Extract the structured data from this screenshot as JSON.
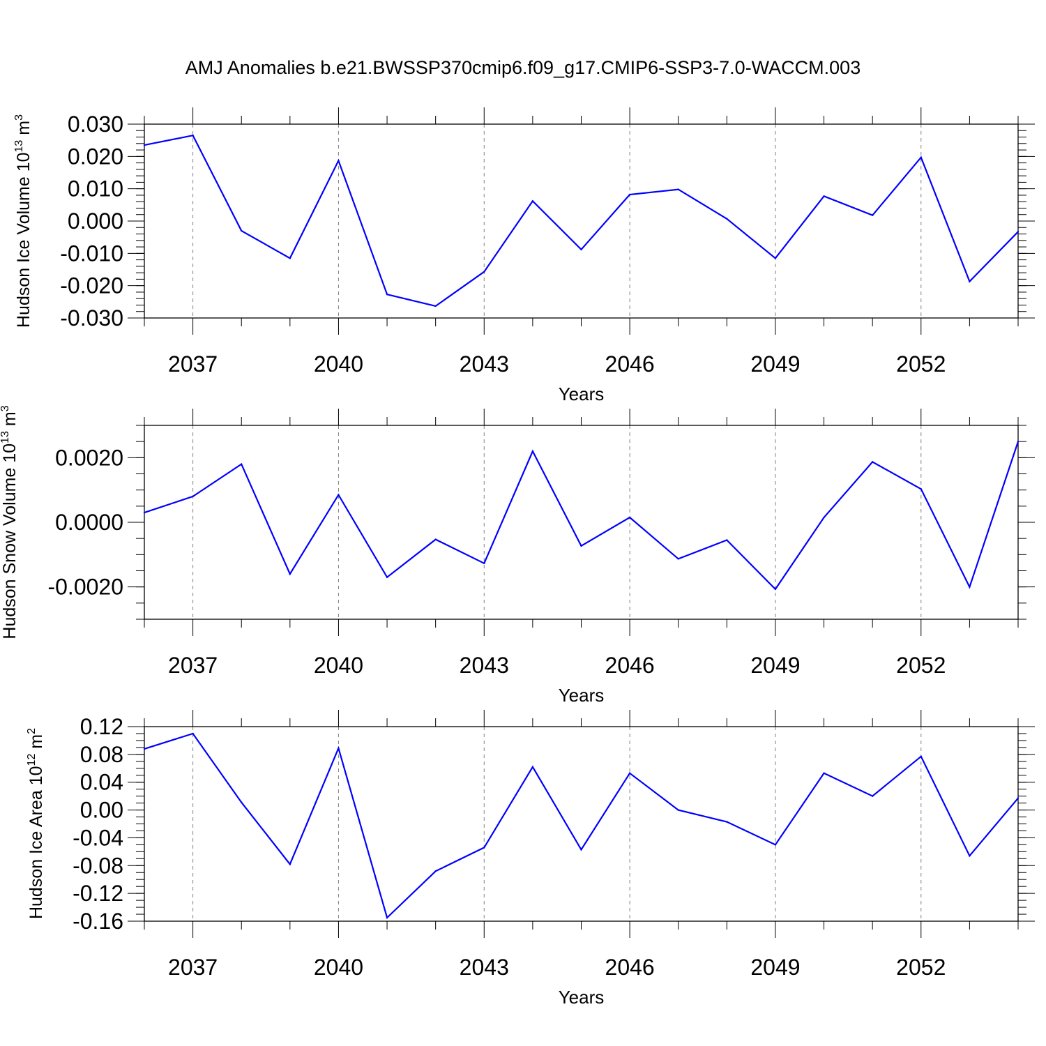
{
  "figure": {
    "title": "AMJ Anomalies b.e21.BWSSP370cmip6.f09_g17.CMIP6-SSP3-7.0-WACCM.003"
  },
  "colors": {
    "series": "#0000ff",
    "axes": "#000000",
    "grid": "#808080"
  },
  "chart_data": [
    {
      "type": "line",
      "xlabel": "Years",
      "ylabel_text": "Hudson Ice Volume 10",
      "ylabel_exp": "13",
      "ylabel_unit": " m",
      "ylabel_unit_exp": "3",
      "xlim": [
        2036,
        2054
      ],
      "ylim": [
        -0.03,
        0.03
      ],
      "x_ticks": [
        2037,
        2040,
        2043,
        2046,
        2049,
        2052
      ],
      "x_tick_labels": [
        "2037",
        "2040",
        "2043",
        "2046",
        "2049",
        "2052"
      ],
      "y_ticks": [
        -0.03,
        -0.02,
        -0.01,
        0.0,
        0.01,
        0.02,
        0.03
      ],
      "y_tick_labels": [
        "-0.030",
        "-0.020",
        "-0.010",
        "0.000",
        "0.010",
        "0.020",
        "0.030"
      ],
      "y_minor_step": 0.002,
      "grid": "x-major dashed",
      "x": [
        2036,
        2037,
        2038,
        2039,
        2040,
        2041,
        2042,
        2043,
        2044,
        2045,
        2046,
        2047,
        2048,
        2049,
        2050,
        2051,
        2052,
        2053,
        2054
      ],
      "series": [
        {
          "values": [
            0.0235,
            0.0265,
            -0.003,
            -0.0115,
            0.0187,
            -0.0227,
            -0.0263,
            -0.0157,
            0.0062,
            -0.0088,
            0.0082,
            0.0098,
            0.0007,
            -0.0115,
            0.0077,
            0.0018,
            0.0197,
            -0.0187,
            -0.0033
          ]
        }
      ]
    },
    {
      "type": "line",
      "xlabel": "Years",
      "ylabel_text": "Hudson Snow Volume 10",
      "ylabel_exp": "13",
      "ylabel_unit": " m",
      "ylabel_unit_exp": "3",
      "xlim": [
        2036,
        2054
      ],
      "ylim": [
        -0.003,
        0.003
      ],
      "x_ticks": [
        2037,
        2040,
        2043,
        2046,
        2049,
        2052
      ],
      "x_tick_labels": [
        "2037",
        "2040",
        "2043",
        "2046",
        "2049",
        "2052"
      ],
      "y_ticks": [
        -0.002,
        0.0,
        0.002
      ],
      "y_tick_labels": [
        "-0.0020",
        "0.0000",
        "0.0020"
      ],
      "y_minor_step": 0.0005,
      "grid": "x-major dashed",
      "x": [
        2036,
        2037,
        2038,
        2039,
        2040,
        2041,
        2042,
        2043,
        2044,
        2045,
        2046,
        2047,
        2048,
        2049,
        2050,
        2051,
        2052,
        2053,
        2054
      ],
      "series": [
        {
          "values": [
            0.0003,
            0.0008,
            0.0018,
            -0.0016,
            0.00085,
            -0.0017,
            -0.00053,
            -0.00127,
            0.0022,
            -0.00073,
            0.00015,
            -0.00113,
            -0.00055,
            -0.00207,
            0.00015,
            0.00187,
            0.00103,
            -0.002,
            0.0025
          ]
        }
      ]
    },
    {
      "type": "line",
      "xlabel": "Years",
      "ylabel_text": "Hudson Ice Area 10",
      "ylabel_exp": "12",
      "ylabel_unit": " m",
      "ylabel_unit_exp": "2",
      "xlim": [
        2036,
        2054
      ],
      "ylim": [
        -0.16,
        0.12
      ],
      "x_ticks": [
        2037,
        2040,
        2043,
        2046,
        2049,
        2052
      ],
      "x_tick_labels": [
        "2037",
        "2040",
        "2043",
        "2046",
        "2049",
        "2052"
      ],
      "y_ticks": [
        -0.16,
        -0.12,
        -0.08,
        -0.04,
        0.0,
        0.04,
        0.08,
        0.12
      ],
      "y_tick_labels": [
        "-0.16",
        "-0.12",
        "-0.08",
        "-0.04",
        "0.00",
        "0.04",
        "0.08",
        "0.12"
      ],
      "y_minor_step": 0.01,
      "grid": "x-major dashed",
      "x": [
        2036,
        2037,
        2038,
        2039,
        2040,
        2041,
        2042,
        2043,
        2044,
        2045,
        2046,
        2047,
        2048,
        2049,
        2050,
        2051,
        2052,
        2053,
        2054
      ],
      "series": [
        {
          "values": [
            0.088,
            0.11,
            0.011,
            -0.078,
            0.089,
            -0.155,
            -0.088,
            -0.054,
            0.062,
            -0.057,
            0.053,
            0.0,
            -0.017,
            -0.05,
            0.053,
            0.02,
            0.077,
            -0.066,
            0.017
          ]
        }
      ]
    }
  ]
}
